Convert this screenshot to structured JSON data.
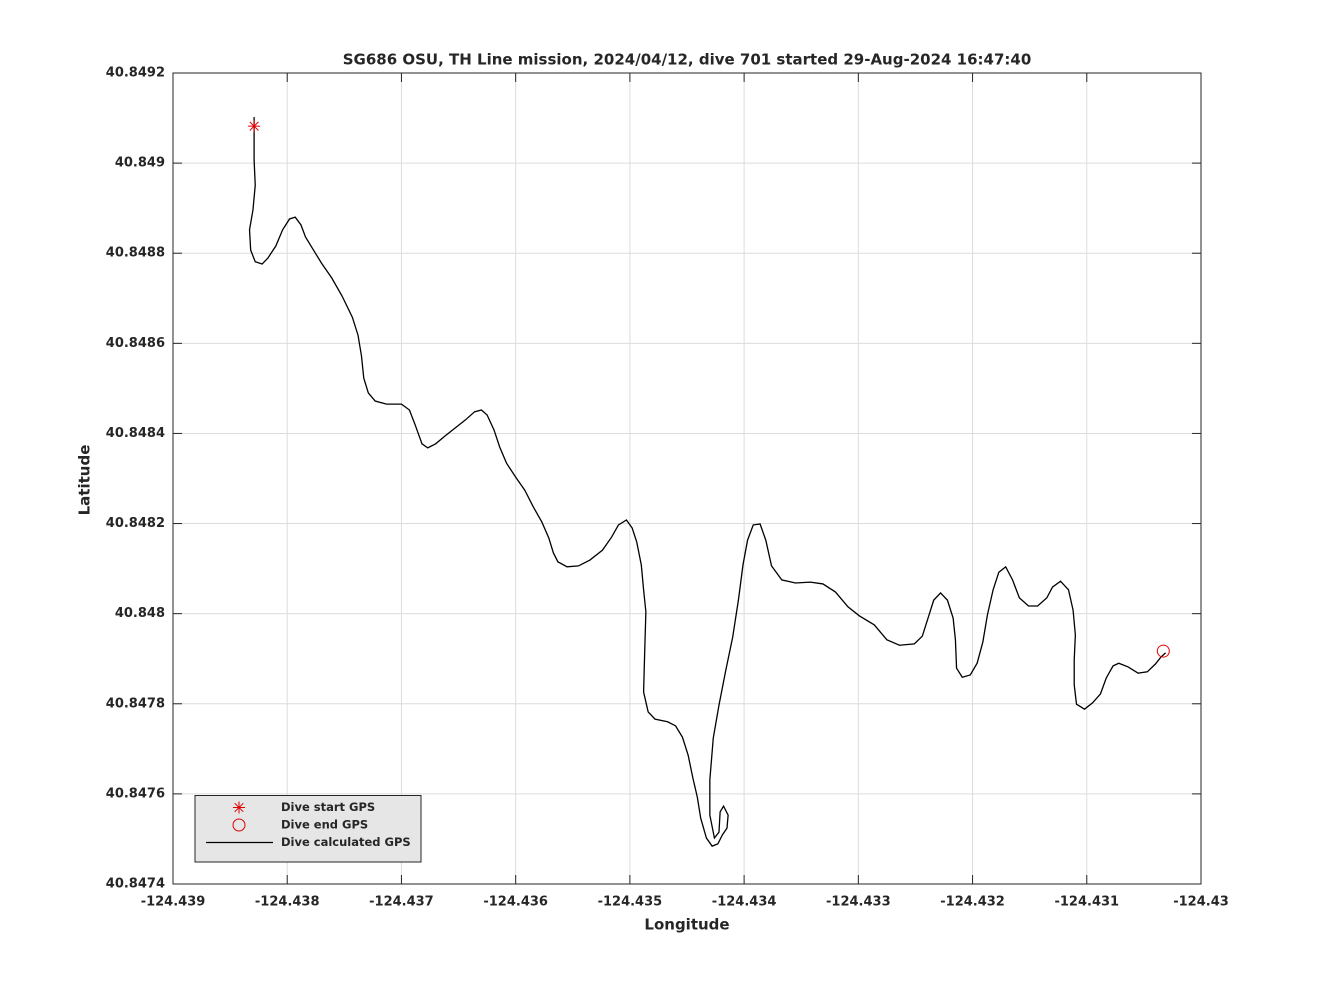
{
  "chart_data": {
    "type": "line",
    "title": "SG686 OSU, TH Line mission, 2024/04/12, dive 701 started 29-Aug-2024 16:47:40",
    "x_label": "Longitude",
    "y_label": "Latitude",
    "xlim": [
      -124.439,
      -124.43
    ],
    "ylim": [
      40.8474,
      40.8492
    ],
    "xticks": [
      -124.439,
      -124.438,
      -124.437,
      -124.436,
      -124.435,
      -124.434,
      -124.433,
      -124.432,
      -124.431,
      -124.43
    ],
    "yticks": [
      40.8474,
      40.8476,
      40.8478,
      40.848,
      40.8482,
      40.8484,
      40.8486,
      40.8488,
      40.849,
      40.8492
    ],
    "grid": true,
    "legend_position": "lower-left",
    "series": [
      {
        "name": "Dive start GPS",
        "color": "#e00000",
        "marker": "asterisk",
        "x": [
          -124.43829
        ],
        "values": [
          40.849082
        ]
      },
      {
        "name": "Dive end GPS",
        "color": "#e00000",
        "marker": "circle",
        "x": [
          -124.43033
        ],
        "values": [
          40.847917
        ]
      },
      {
        "name": "Dive calculated GPS",
        "color": "#000000",
        "line_style": "solid",
        "x": [
          -124.43829,
          -124.43829,
          -124.43828,
          -124.4383,
          -124.43833,
          -124.43832,
          -124.43828,
          -124.43822,
          -124.43817,
          -124.4381,
          -124.43804,
          -124.43798,
          -124.43793,
          -124.43788,
          -124.43784,
          -124.43777,
          -124.4377,
          -124.43761,
          -124.43752,
          -124.43743,
          -124.43738,
          -124.43735,
          -124.43733,
          -124.43729,
          -124.43723,
          -124.43713,
          -124.437,
          -124.43693,
          -124.43688,
          -124.43682,
          -124.43677,
          -124.4367,
          -124.43662,
          -124.43653,
          -124.43644,
          -124.43636,
          -124.4363,
          -124.43625,
          -124.43619,
          -124.43614,
          -124.43608,
          -124.436,
          -124.43592,
          -124.43585,
          -124.43577,
          -124.43571,
          -124.43567,
          -124.43563,
          -124.43555,
          -124.43545,
          -124.43535,
          -124.43524,
          -124.43516,
          -124.4351,
          -124.43503,
          -124.43498,
          -124.43494,
          -124.4349,
          -124.43488,
          -124.43486,
          -124.43487,
          -124.43488,
          -124.43484,
          -124.43478,
          -124.43467,
          -124.4346,
          -124.43454,
          -124.43449,
          -124.43445,
          -124.43441,
          -124.43438,
          -124.43433,
          -124.43428,
          -124.43423,
          -124.43419,
          -124.43415,
          -124.43414,
          -124.43418,
          -124.43421,
          -124.43422,
          -124.43426,
          -124.4343,
          -124.4343,
          -124.43427,
          -124.43422,
          -124.43416,
          -124.4341,
          -124.43405,
          -124.43401,
          -124.43397,
          -124.43392,
          -124.43386,
          -124.43381,
          -124.43376,
          -124.43367,
          -124.43355,
          -124.43342,
          -124.43331,
          -124.4332,
          -124.43309,
          -124.43299,
          -124.43286,
          -124.43275,
          -124.43264,
          -124.43251,
          -124.43244,
          -124.43239,
          -124.43234,
          -124.43228,
          -124.43222,
          -124.43217,
          -124.43215,
          -124.43214,
          -124.43209,
          -124.43202,
          -124.43196,
          -124.43191,
          -124.43187,
          -124.43182,
          -124.43177,
          -124.43171,
          -124.43165,
          -124.43159,
          -124.43151,
          -124.43143,
          -124.43135,
          -124.4313,
          -124.43123,
          -124.43116,
          -124.43112,
          -124.4311,
          -124.43111,
          -124.43111,
          -124.43109,
          -124.43102,
          -124.43095,
          -124.43088,
          -124.43083,
          -124.43077,
          -124.43072,
          -124.43064,
          -124.43055,
          -124.43047,
          -124.4304,
          -124.43035,
          -124.43031
        ],
        "values": [
          40.849102,
          40.849007,
          40.848951,
          40.848896,
          40.848852,
          40.848807,
          40.848781,
          40.848776,
          40.848789,
          40.848816,
          40.848852,
          40.848876,
          40.84888,
          40.848863,
          40.848836,
          40.848807,
          40.848778,
          40.848745,
          40.848705,
          40.848658,
          40.848618,
          40.848572,
          40.848523,
          40.84849,
          40.848472,
          40.848465,
          40.848465,
          40.848452,
          40.848419,
          40.848377,
          40.848368,
          40.848377,
          40.848394,
          40.848412,
          40.84843,
          40.848448,
          40.848452,
          40.848441,
          40.848408,
          40.84837,
          40.848334,
          40.848303,
          40.848274,
          40.848239,
          40.848203,
          40.848168,
          40.848135,
          40.848115,
          40.848104,
          40.848106,
          40.848119,
          40.848141,
          40.84817,
          40.848197,
          40.848208,
          40.84819,
          40.848159,
          40.848108,
          40.848053,
          40.848004,
          40.847919,
          40.847826,
          40.847782,
          40.847766,
          40.84776,
          40.847751,
          40.847726,
          40.847686,
          40.847637,
          40.847593,
          40.847546,
          40.847502,
          40.847484,
          40.847489,
          40.847509,
          40.847524,
          40.847553,
          40.847573,
          40.84756,
          40.847515,
          40.847502,
          40.847553,
          40.847631,
          40.847724,
          40.847797,
          40.847875,
          40.847948,
          40.84803,
          40.848108,
          40.848163,
          40.848197,
          40.848199,
          40.848163,
          40.848106,
          40.848075,
          40.848068,
          40.84807,
          40.848066,
          40.848048,
          40.848015,
          40.847995,
          40.847975,
          40.847942,
          40.84793,
          40.847933,
          40.84795,
          40.84799,
          40.84803,
          40.848046,
          40.84803,
          40.84799,
          40.847942,
          40.847879,
          40.847859,
          40.847864,
          40.84789,
          40.847937,
          40.847997,
          40.848053,
          40.848092,
          40.848104,
          40.848075,
          40.848035,
          40.848017,
          40.848017,
          40.848035,
          40.848059,
          40.848072,
          40.848053,
          40.848008,
          40.847953,
          40.847897,
          40.847842,
          40.847799,
          40.847788,
          40.847802,
          40.847822,
          40.847857,
          40.847884,
          40.84789,
          40.847882,
          40.847868,
          40.847871,
          40.847888,
          40.847904,
          40.847913
        ]
      }
    ]
  }
}
